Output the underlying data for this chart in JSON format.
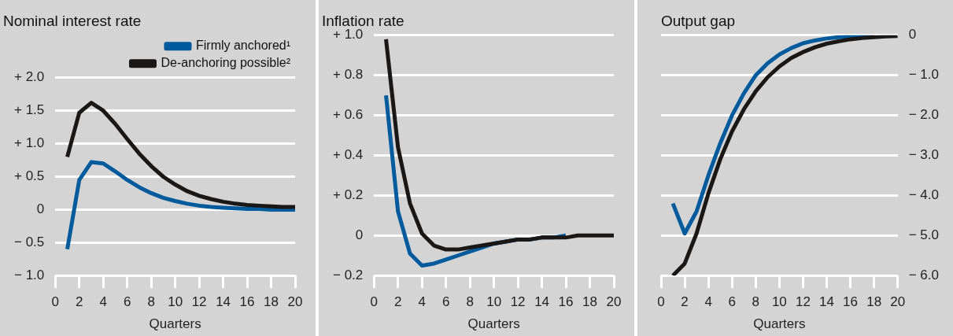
{
  "chart_data": [
    {
      "type": "line",
      "title": "Nominal interest rate",
      "xlabel": "Quarters",
      "x": [
        1,
        2,
        3,
        4,
        5,
        6,
        7,
        8,
        9,
        10,
        11,
        12,
        13,
        14,
        15,
        16,
        17,
        18,
        19,
        20
      ],
      "xlim": [
        0,
        20
      ],
      "xticks": [
        0,
        2,
        4,
        6,
        8,
        10,
        12,
        14,
        16,
        18,
        20
      ],
      "ylim": [
        -1.0,
        2.0
      ],
      "yticks": [
        {
          "value": -1.0,
          "label": "− 1.0"
        },
        {
          "value": -0.5,
          "label": "− 0.5"
        },
        0,
        {
          "value": 0.5,
          "label": "+ 0.5"
        },
        {
          "value": 1.0,
          "label": "+ 1.0"
        },
        {
          "value": 1.5,
          "label": "+ 1.5"
        },
        {
          "value": 2.0,
          "label": "+ 2.0"
        }
      ],
      "grid": "y",
      "legend": "top right",
      "line_style": "solid",
      "marker": "none",
      "series": [
        {
          "name": "Firmly anchored¹",
          "color": "#005a9c",
          "values": [
            -0.6,
            0.45,
            0.72,
            0.7,
            0.58,
            0.45,
            0.34,
            0.25,
            0.18,
            0.13,
            0.09,
            0.06,
            0.04,
            0.03,
            0.02,
            0.01,
            0.01,
            0.0,
            0.0,
            0.0
          ]
        },
        {
          "name": "De-anchoring possible²",
          "color": "#1a1717",
          "values": [
            0.8,
            1.47,
            1.62,
            1.5,
            1.3,
            1.07,
            0.85,
            0.66,
            0.5,
            0.38,
            0.28,
            0.21,
            0.16,
            0.12,
            0.09,
            0.07,
            0.06,
            0.05,
            0.04,
            0.04
          ]
        }
      ]
    },
    {
      "type": "line",
      "title": "Inflation rate",
      "xlabel": "Quarters",
      "x": [
        1,
        2,
        3,
        4,
        5,
        6,
        7,
        8,
        9,
        10,
        11,
        12,
        13,
        14,
        15,
        16,
        17,
        18,
        19,
        20
      ],
      "xlim": [
        0,
        20
      ],
      "xticks": [
        0,
        2,
        4,
        6,
        8,
        10,
        12,
        14,
        16,
        18,
        20
      ],
      "ylim": [
        -0.2,
        1.0
      ],
      "yticks": [
        {
          "value": -0.2,
          "label": "− 0.2"
        },
        0,
        {
          "value": 0.2,
          "label": "+ 0.2"
        },
        {
          "value": 0.4,
          "label": "+ 0.4"
        },
        {
          "value": 0.6,
          "label": "+ 0.6"
        },
        {
          "value": 0.8,
          "label": "+ 0.8"
        },
        {
          "value": 1.0,
          "label": "+ 1.0"
        }
      ],
      "grid": "y",
      "line_style": "solid",
      "marker": "none",
      "series": [
        {
          "color": "#005a9c",
          "values": [
            0.7,
            0.12,
            -0.09,
            -0.15,
            -0.14,
            -0.12,
            -0.1,
            -0.08,
            -0.06,
            -0.04,
            -0.03,
            -0.02,
            -0.02,
            -0.01,
            -0.01,
            0.0,
            null,
            null,
            null,
            null
          ]
        },
        {
          "color": "#1a1717",
          "values": [
            0.98,
            0.44,
            0.16,
            0.01,
            -0.05,
            -0.07,
            -0.07,
            -0.06,
            -0.05,
            -0.04,
            -0.03,
            -0.02,
            -0.02,
            -0.01,
            -0.01,
            -0.01,
            0.0,
            0.0,
            0.0,
            0.0
          ]
        }
      ]
    },
    {
      "type": "line",
      "title": "Output gap",
      "xlabel": "Quarters",
      "x": [
        1,
        2,
        3,
        4,
        5,
        6,
        7,
        8,
        9,
        10,
        11,
        12,
        13,
        14,
        15,
        16,
        17,
        18,
        19,
        20
      ],
      "xlim": [
        0,
        20
      ],
      "xticks": [
        0,
        2,
        4,
        6,
        8,
        10,
        12,
        14,
        16,
        18,
        20
      ],
      "y2lim": [
        -6.0,
        0
      ],
      "y2ticks": [
        {
          "value": -6.0,
          "label": "− 6.0"
        },
        {
          "value": -5.0,
          "label": "− 5.0"
        },
        {
          "value": -4.0,
          "label": "− 4.0"
        },
        {
          "value": -3.0,
          "label": "− 3.0"
        },
        {
          "value": -2.0,
          "label": "− 2.0"
        },
        {
          "value": -1.0,
          "label": "− 1.0"
        },
        0
      ],
      "grid": "y",
      "line_style": "solid",
      "marker": "none",
      "series": [
        {
          "color": "#005a9c",
          "axis": "y2",
          "values": [
            -4.2,
            -4.95,
            -4.4,
            -3.5,
            -2.7,
            -2.0,
            -1.45,
            -1.0,
            -0.7,
            -0.48,
            -0.32,
            -0.2,
            -0.13,
            -0.08,
            -0.05,
            -0.03,
            -0.02,
            -0.01,
            null,
            null
          ]
        },
        {
          "color": "#1a1717",
          "axis": "y2",
          "values": [
            -6.0,
            -5.7,
            -4.95,
            -3.95,
            -3.1,
            -2.4,
            -1.85,
            -1.4,
            -1.05,
            -0.78,
            -0.57,
            -0.42,
            -0.3,
            -0.21,
            -0.15,
            -0.1,
            -0.07,
            -0.05,
            -0.03,
            -0.02
          ]
        }
      ]
    }
  ]
}
